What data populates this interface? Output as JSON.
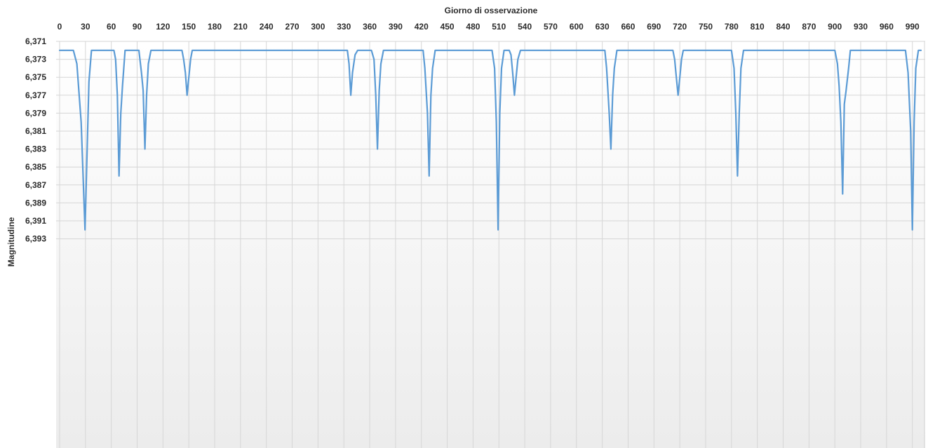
{
  "chart_data": {
    "type": "line",
    "xlabel": "Giorno di osservazione",
    "ylabel": "Magnitudine",
    "x_ticks": [
      0,
      30,
      60,
      90,
      120,
      150,
      180,
      210,
      240,
      270,
      300,
      330,
      360,
      390,
      420,
      450,
      480,
      510,
      540,
      570,
      600,
      630,
      660,
      690,
      720,
      750,
      780,
      810,
      840,
      870,
      900,
      930,
      960,
      990
    ],
    "xlim": [
      0,
      1000
    ],
    "x_axis_position": "top",
    "y_ticks": [
      "6,371",
      "6,373",
      "6,375",
      "6,377",
      "6,379",
      "6,381",
      "6,383",
      "6,385",
      "6,387",
      "6,389",
      "6,391",
      "6,393"
    ],
    "ylim": [
      6.371,
      6.394
    ],
    "y_inverted": true,
    "decimal_separator": ",",
    "grid": true,
    "legend": "none",
    "series": [
      {
        "color": "#5b9bd5",
        "baseline": 6.372,
        "points": [
          [
            0,
            6.372
          ],
          [
            16,
            6.372
          ],
          [
            20,
            6.3735
          ],
          [
            25,
            6.38
          ],
          [
            29.5,
            6.392
          ],
          [
            34,
            6.3755
          ],
          [
            37,
            6.372
          ],
          [
            63,
            6.372
          ],
          [
            65,
            6.373
          ],
          [
            67,
            6.377
          ],
          [
            69,
            6.386
          ],
          [
            71,
            6.379
          ],
          [
            73,
            6.376
          ],
          [
            76,
            6.372
          ],
          [
            92,
            6.372
          ],
          [
            95,
            6.3745
          ],
          [
            97,
            6.3765
          ],
          [
            99,
            6.383
          ],
          [
            101,
            6.377
          ],
          [
            103,
            6.3735
          ],
          [
            106,
            6.372
          ],
          [
            142,
            6.372
          ],
          [
            144,
            6.373
          ],
          [
            146,
            6.3745
          ],
          [
            148,
            6.377
          ],
          [
            150,
            6.375
          ],
          [
            152,
            6.373
          ],
          [
            154,
            6.372
          ],
          [
            334,
            6.372
          ],
          [
            336,
            6.3735
          ],
          [
            338,
            6.377
          ],
          [
            340,
            6.3745
          ],
          [
            343,
            6.3725
          ],
          [
            346,
            6.372
          ],
          [
            362,
            6.372
          ],
          [
            365,
            6.373
          ],
          [
            367,
            6.377
          ],
          [
            369,
            6.383
          ],
          [
            371,
            6.3765
          ],
          [
            373,
            6.3735
          ],
          [
            376,
            6.372
          ],
          [
            422,
            6.372
          ],
          [
            424,
            6.374
          ],
          [
            427,
            6.379
          ],
          [
            429,
            6.386
          ],
          [
            431,
            6.377
          ],
          [
            433,
            6.374
          ],
          [
            436,
            6.372
          ],
          [
            502,
            6.372
          ],
          [
            505,
            6.374
          ],
          [
            507,
            6.38
          ],
          [
            509,
            6.392
          ],
          [
            511,
            6.379
          ],
          [
            513,
            6.374
          ],
          [
            516,
            6.372
          ],
          [
            522,
            6.372
          ],
          [
            524,
            6.3725
          ],
          [
            526,
            6.3745
          ],
          [
            528,
            6.377
          ],
          [
            530,
            6.375
          ],
          [
            532,
            6.373
          ],
          [
            535,
            6.372
          ],
          [
            633,
            6.372
          ],
          [
            635,
            6.374
          ],
          [
            638,
            6.379
          ],
          [
            640,
            6.383
          ],
          [
            642,
            6.377
          ],
          [
            644,
            6.374
          ],
          [
            647,
            6.372
          ],
          [
            712,
            6.372
          ],
          [
            714,
            6.373
          ],
          [
            716,
            6.375
          ],
          [
            718,
            6.377
          ],
          [
            720,
            6.375
          ],
          [
            722,
            6.373
          ],
          [
            724,
            6.372
          ],
          [
            780,
            6.372
          ],
          [
            783,
            6.374
          ],
          [
            785,
            6.379
          ],
          [
            787,
            6.386
          ],
          [
            789,
            6.379
          ],
          [
            791,
            6.374
          ],
          [
            794,
            6.372
          ],
          [
            900,
            6.372
          ],
          [
            903,
            6.3735
          ],
          [
            905,
            6.376
          ],
          [
            907,
            6.38
          ],
          [
            909,
            6.388
          ],
          [
            911,
            6.378
          ],
          [
            913,
            6.3765
          ],
          [
            916,
            6.374
          ],
          [
            918,
            6.372
          ],
          [
            982,
            6.372
          ],
          [
            985,
            6.3745
          ],
          [
            988,
            6.381
          ],
          [
            990,
            6.392
          ],
          [
            992,
            6.38
          ],
          [
            994,
            6.374
          ],
          [
            997,
            6.372
          ],
          [
            1000,
            6.372
          ]
        ]
      }
    ]
  }
}
